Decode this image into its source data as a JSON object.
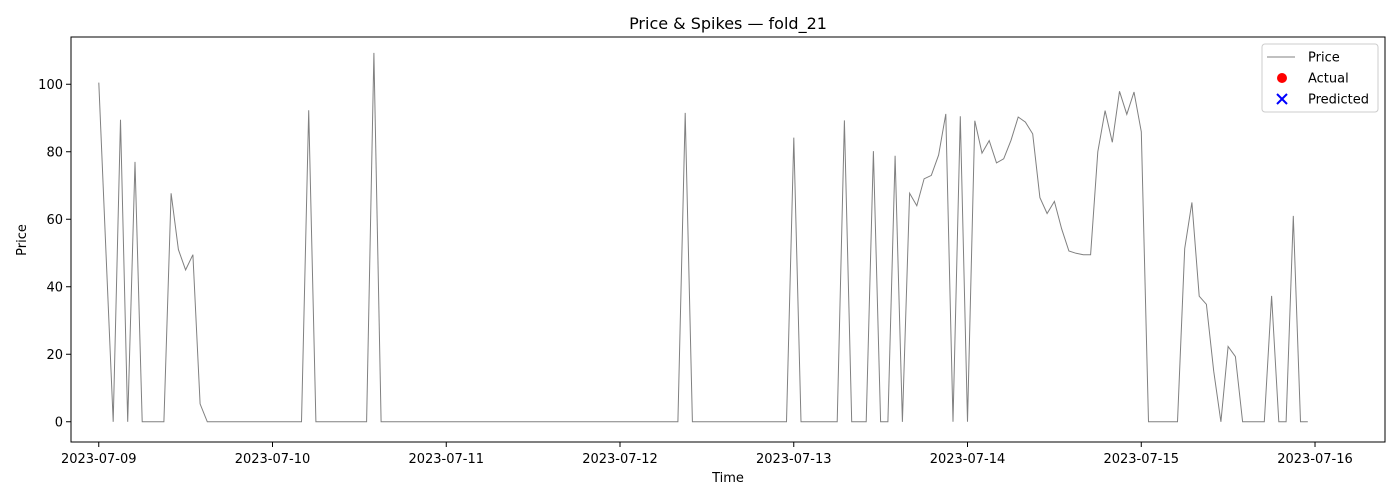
{
  "chart_data": {
    "type": "line",
    "title": "Price & Spikes — fold_21",
    "xlabel": "Time",
    "ylabel": "Price",
    "xlim": [
      "2023-07-08T20:10",
      "2023-07-16T09:40"
    ],
    "ylim": [
      -6,
      114
    ],
    "x_ticks": [
      "2023-07-09",
      "2023-07-10",
      "2023-07-11",
      "2023-07-12",
      "2023-07-13",
      "2023-07-14",
      "2023-07-15",
      "2023-07-16"
    ],
    "y_ticks": [
      0,
      20,
      40,
      60,
      80,
      100
    ],
    "grid": false,
    "legend": {
      "position": "top-right",
      "entries": [
        {
          "label": "Price",
          "marker": "line",
          "color": "#808080"
        },
        {
          "label": "Actual",
          "marker": "circle",
          "color": "#ff0000"
        },
        {
          "label": "Predicted",
          "marker": "x",
          "color": "#0000ff"
        }
      ]
    },
    "series": [
      {
        "name": "Price",
        "color": "#808080",
        "points": [
          [
            "2023-07-09T00:00",
            100.5
          ],
          [
            "2023-07-09T01:00",
            50
          ],
          [
            "2023-07-09T02:00",
            0
          ],
          [
            "2023-07-09T03:00",
            89.5
          ],
          [
            "2023-07-09T04:00",
            0
          ],
          [
            "2023-07-09T05:00",
            77
          ],
          [
            "2023-07-09T06:00",
            0
          ],
          [
            "2023-07-09T07:00",
            0
          ],
          [
            "2023-07-09T08:00",
            0
          ],
          [
            "2023-07-09T09:00",
            0
          ],
          [
            "2023-07-09T10:00",
            67.7
          ],
          [
            "2023-07-09T11:00",
            51
          ],
          [
            "2023-07-09T12:00",
            45
          ],
          [
            "2023-07-09T13:00",
            49.5
          ],
          [
            "2023-07-09T14:00",
            5.3
          ],
          [
            "2023-07-09T15:00",
            0
          ],
          [
            "2023-07-10T04:00",
            0
          ],
          [
            "2023-07-10T05:00",
            92.3
          ],
          [
            "2023-07-10T06:00",
            0
          ],
          [
            "2023-07-10T13:00",
            0
          ],
          [
            "2023-07-10T14:00",
            109.3
          ],
          [
            "2023-07-10T15:00",
            0
          ],
          [
            "2023-07-12T08:00",
            0
          ],
          [
            "2023-07-12T09:00",
            91.5
          ],
          [
            "2023-07-12T10:00",
            0
          ],
          [
            "2023-07-12T23:00",
            0
          ],
          [
            "2023-07-13T00:00",
            84.2
          ],
          [
            "2023-07-13T01:00",
            0
          ],
          [
            "2023-07-13T06:00",
            0
          ],
          [
            "2023-07-13T07:00",
            89.3
          ],
          [
            "2023-07-13T08:00",
            0
          ],
          [
            "2023-07-13T10:00",
            0
          ],
          [
            "2023-07-13T11:00",
            80.2
          ],
          [
            "2023-07-13T12:00",
            0
          ],
          [
            "2023-07-13T13:00",
            0
          ],
          [
            "2023-07-13T14:00",
            78.8
          ],
          [
            "2023-07-13T15:00",
            0
          ],
          [
            "2023-07-13T16:00",
            67.7
          ],
          [
            "2023-07-13T17:00",
            64
          ],
          [
            "2023-07-13T18:00",
            72
          ],
          [
            "2023-07-13T19:00",
            73
          ],
          [
            "2023-07-13T20:00",
            79
          ],
          [
            "2023-07-13T21:00",
            91.2
          ],
          [
            "2023-07-13T22:00",
            0
          ],
          [
            "2023-07-13T23:00",
            90.5
          ],
          [
            "2023-07-14T00:00",
            0
          ],
          [
            "2023-07-14T01:00",
            89.2
          ],
          [
            "2023-07-14T02:00",
            79.6
          ],
          [
            "2023-07-14T03:00",
            83.3
          ],
          [
            "2023-07-14T04:00",
            76.7
          ],
          [
            "2023-07-14T05:00",
            77.9
          ],
          [
            "2023-07-14T06:00",
            83.4
          ],
          [
            "2023-07-14T07:00",
            90.3
          ],
          [
            "2023-07-14T08:00",
            88.8
          ],
          [
            "2023-07-14T09:00",
            85.3
          ],
          [
            "2023-07-14T10:00",
            66.4
          ],
          [
            "2023-07-14T11:00",
            61.7
          ],
          [
            "2023-07-14T12:00",
            65.3
          ],
          [
            "2023-07-14T13:00",
            57.2
          ],
          [
            "2023-07-14T14:00",
            50.6
          ],
          [
            "2023-07-14T15:00",
            49.9
          ],
          [
            "2023-07-14T16:00",
            49.5
          ],
          [
            "2023-07-14T17:00",
            49.5
          ],
          [
            "2023-07-14T18:00",
            80
          ],
          [
            "2023-07-14T19:00",
            92.2
          ],
          [
            "2023-07-14T20:00",
            82.8
          ],
          [
            "2023-07-14T21:00",
            97.9
          ],
          [
            "2023-07-14T22:00",
            91.1
          ],
          [
            "2023-07-14T23:00",
            97.7
          ],
          [
            "2023-07-15T00:00",
            85.9
          ],
          [
            "2023-07-15T01:00",
            0
          ],
          [
            "2023-07-15T05:00",
            0
          ],
          [
            "2023-07-15T06:00",
            51.3
          ],
          [
            "2023-07-15T07:00",
            65
          ],
          [
            "2023-07-15T08:00",
            37.2
          ],
          [
            "2023-07-15T09:00",
            34.8
          ],
          [
            "2023-07-15T10:00",
            15
          ],
          [
            "2023-07-15T11:00",
            0
          ],
          [
            "2023-07-15T12:00",
            22.3
          ],
          [
            "2023-07-15T13:00",
            19.3
          ],
          [
            "2023-07-15T14:00",
            0
          ],
          [
            "2023-07-15T17:00",
            0
          ],
          [
            "2023-07-15T18:00",
            37.3
          ],
          [
            "2023-07-15T19:00",
            0
          ],
          [
            "2023-07-15T20:00",
            0
          ],
          [
            "2023-07-15T21:00",
            61
          ],
          [
            "2023-07-15T22:00",
            0
          ],
          [
            "2023-07-15T23:00",
            0
          ]
        ]
      }
    ]
  }
}
